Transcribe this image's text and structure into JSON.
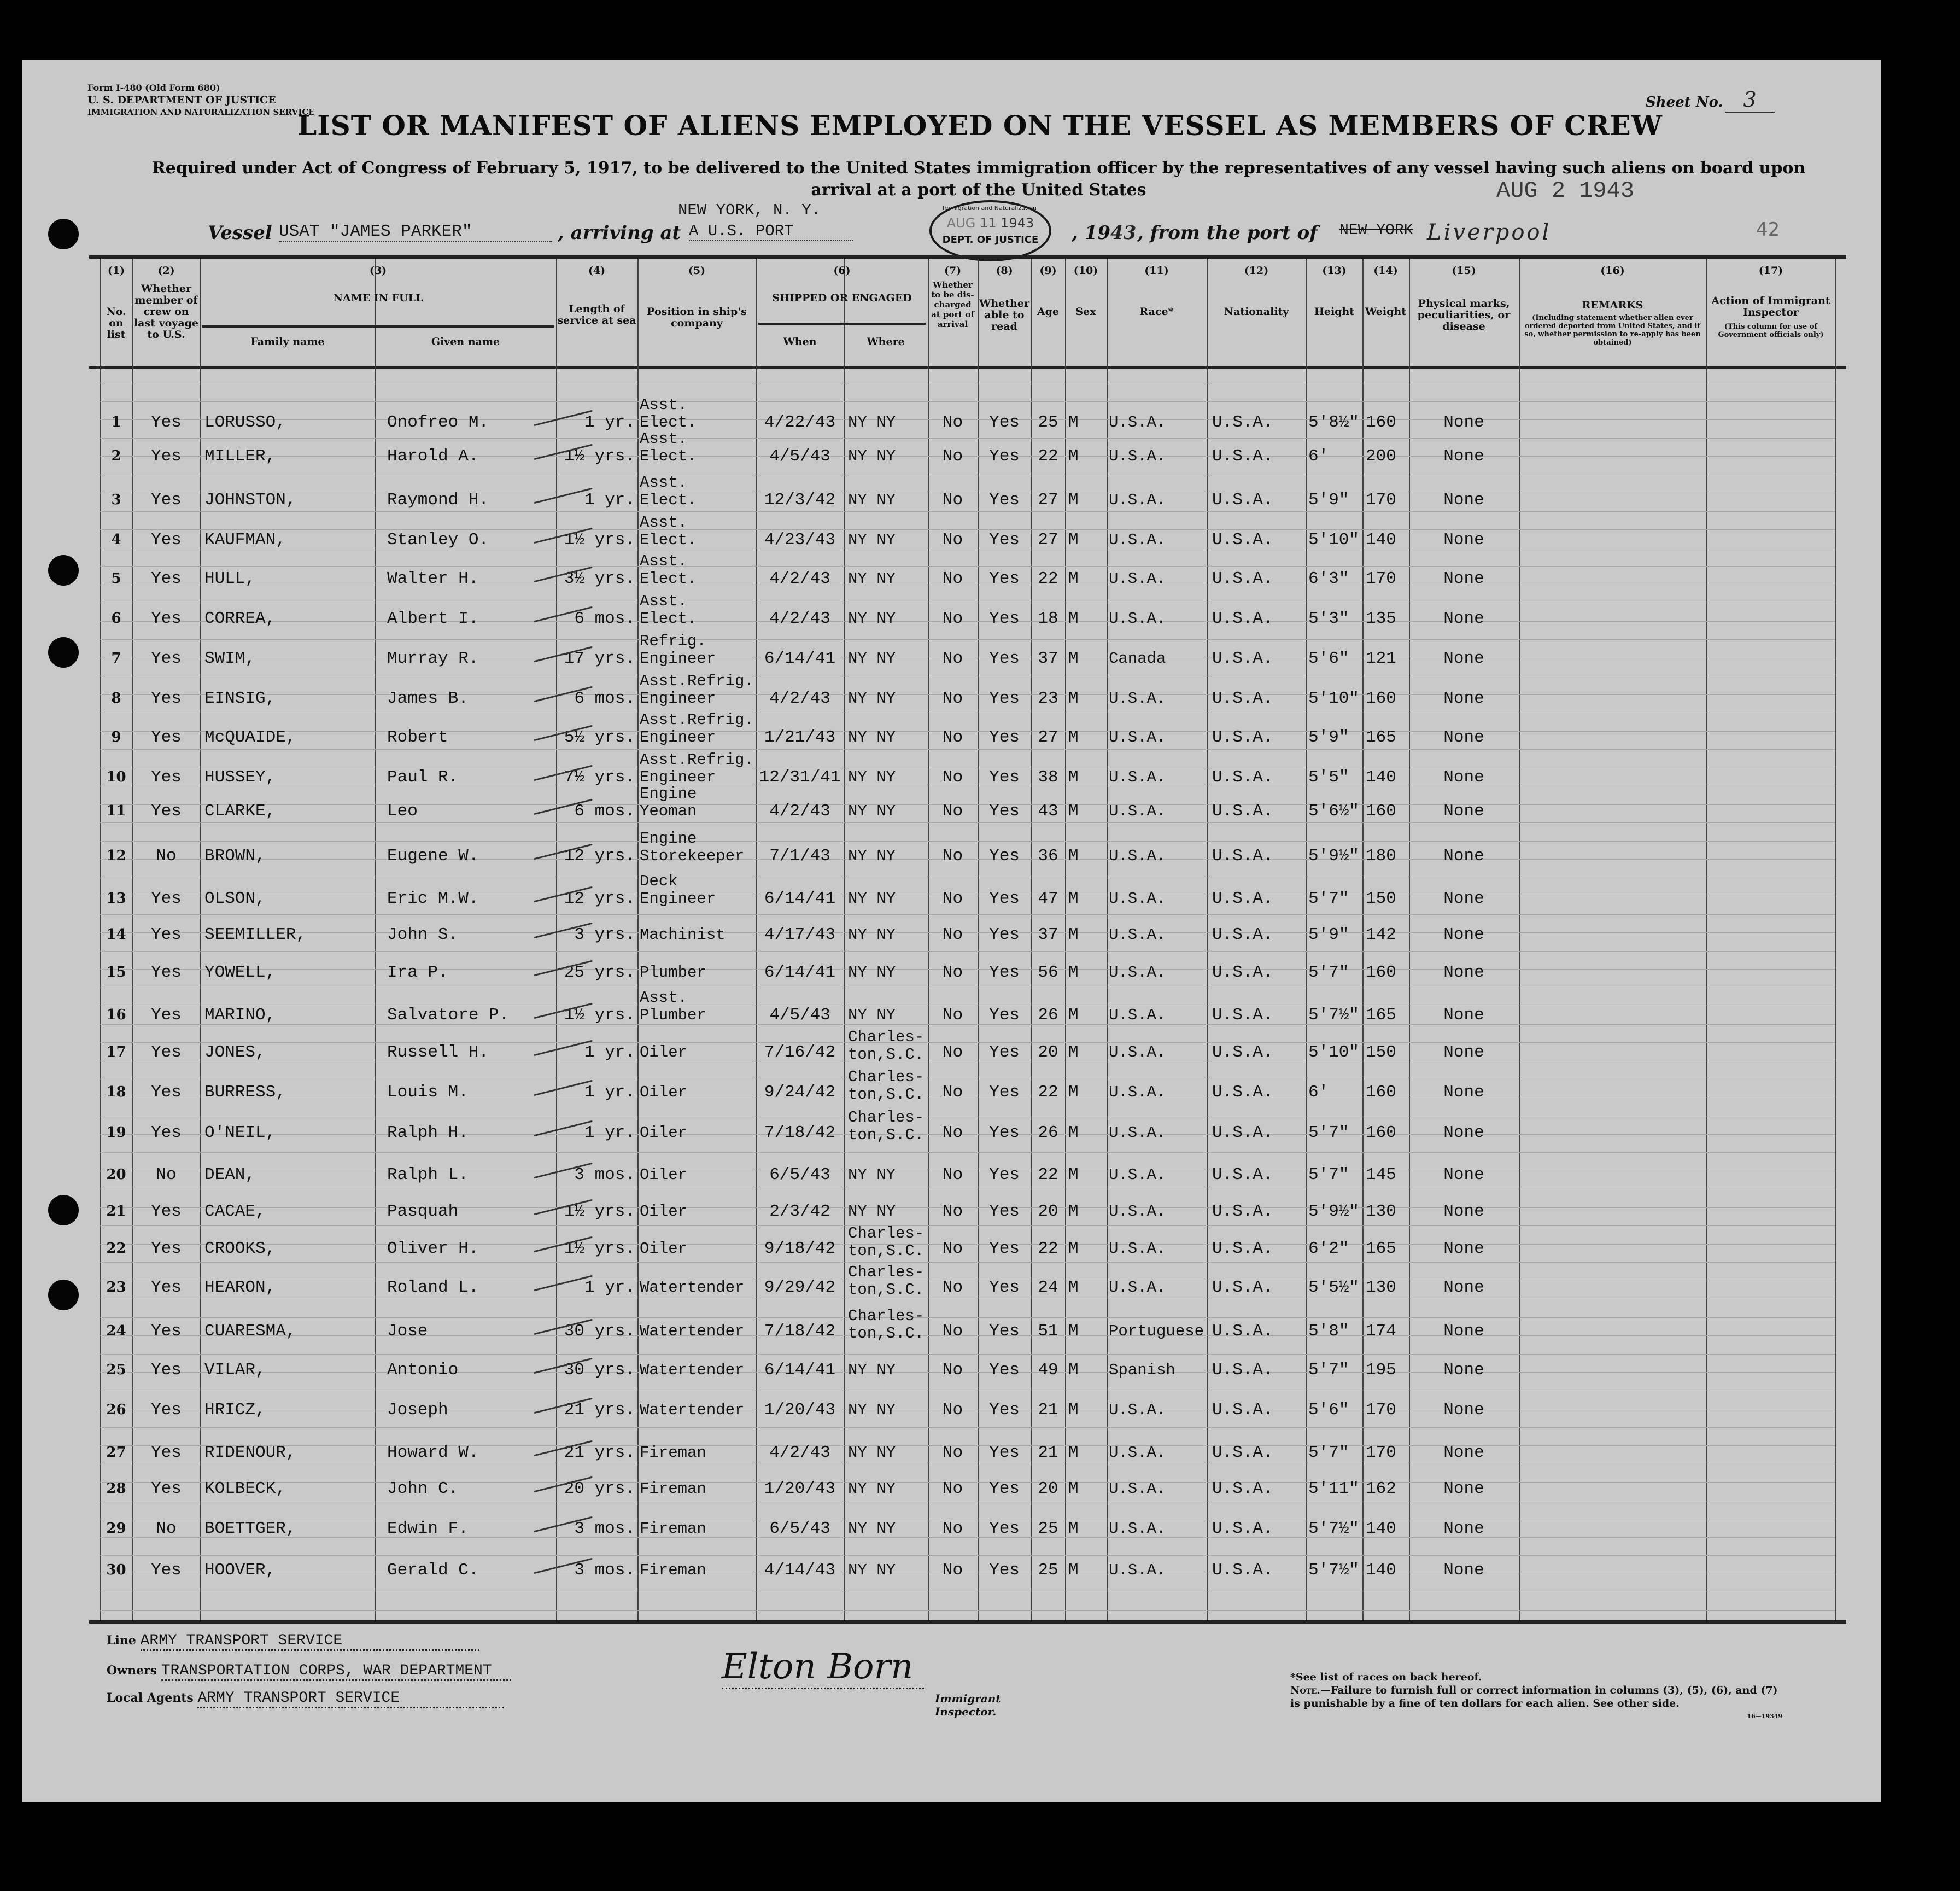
{
  "form": {
    "number": "Form I-480 (Old Form 680)",
    "department": "U. S. DEPARTMENT OF JUSTICE",
    "service": "IMMIGRATION AND NATURALIZATION SERVICE",
    "sheet_label": "Sheet No.",
    "sheet_no": "3"
  },
  "title": "LIST OR MANIFEST OF ALIENS EMPLOYED ON THE VESSEL AS MEMBERS OF CREW",
  "subtitle": "Required under Act of Congress of February 5, 1917, to be delivered to the United States immigration officer by the representatives of any vessel having such aliens on board upon arrival at a port of the United States",
  "vessel_line": {
    "vessel_label": "Vessel",
    "vessel": "USAT \"JAMES PARKER\"",
    "arriving_label": ", arriving at",
    "arriving_above": "NEW YORK, N. Y.",
    "arriving": "A U.S. PORT",
    "year": "1943",
    "year_suffix": ", 19",
    "year_value": "43",
    "from_label": ", from the port of",
    "from_struck": "NEW YORK",
    "from_port": "Liverpool",
    "date_stamp": "AUG 2 1943",
    "page_mark": "42"
  },
  "round_stamp": {
    "top": "Immigration and Naturalization Service",
    "month": "AUG",
    "day": "11",
    "year": "1943",
    "bottom": "DEPT. OF JUSTICE"
  },
  "columns": [
    {
      "num": "(1)",
      "label": "No. on list"
    },
    {
      "num": "(2)",
      "label": "Whether member of crew on last voyage to U.S."
    },
    {
      "num": "(3)",
      "label": "NAME IN FULL",
      "sub": [
        "Family name",
        "Given name"
      ]
    },
    {
      "num": "(4)",
      "label": "Length of service at sea"
    },
    {
      "num": "(5)",
      "label": "Position in ship's company"
    },
    {
      "num": "(6)",
      "label": "SHIPPED OR ENGAGED",
      "sub": [
        "When",
        "Where"
      ]
    },
    {
      "num": "(7)",
      "label": "Whether to be dis-charged at port of arrival"
    },
    {
      "num": "(8)",
      "label": "Whether able to read"
    },
    {
      "num": "(9)",
      "label": "Age"
    },
    {
      "num": "(10)",
      "label": "Sex"
    },
    {
      "num": "(11)",
      "label": "Race*"
    },
    {
      "num": "(12)",
      "label": "Nationality"
    },
    {
      "num": "(13)",
      "label": "Height"
    },
    {
      "num": "(14)",
      "label": "Weight"
    },
    {
      "num": "(15)",
      "label": "Physical marks, peculiarities, or disease"
    },
    {
      "num": "(16)",
      "label": "REMARKS",
      "note": "(Including statement whether alien ever ordered deported from United States, and if so, whether permission to re-apply has been obtained)"
    },
    {
      "num": "(17)",
      "label": "Action of Immigrant Inspector",
      "note": "(This column for use of Government officials only)"
    }
  ],
  "rows": [
    [
      "1",
      "Yes",
      "LORUSSO,",
      "Onofreo M.",
      "1 yr.",
      "Asst.\nElect.",
      "4/22/43",
      "NY NY",
      "No",
      "Yes",
      "25",
      "M",
      "U.S.A.",
      "U.S.A.",
      "5'8½\"",
      "160",
      "None"
    ],
    [
      "2",
      "Yes",
      "MILLER,",
      "Harold A.",
      "1½ yrs.",
      "Asst.\nElect.",
      "4/5/43",
      "NY NY",
      "No",
      "Yes",
      "22",
      "M",
      "U.S.A.",
      "U.S.A.",
      "6'",
      "200",
      "None"
    ],
    [
      "3",
      "Yes",
      "JOHNSTON,",
      "Raymond H.",
      "1 yr.",
      "Asst.\nElect.",
      "12/3/42",
      "NY NY",
      "No",
      "Yes",
      "27",
      "M",
      "U.S.A.",
      "U.S.A.",
      "5'9\"",
      "170",
      "None"
    ],
    [
      "4",
      "Yes",
      "KAUFMAN,",
      "Stanley O.",
      "1½ yrs.",
      "Asst.\nElect.",
      "4/23/43",
      "NY NY",
      "No",
      "Yes",
      "27",
      "M",
      "U.S.A.",
      "U.S.A.",
      "5'10\"",
      "140",
      "None"
    ],
    [
      "5",
      "Yes",
      "HULL,",
      "Walter H.",
      "3½ yrs.",
      "Asst.\nElect.",
      "4/2/43",
      "NY NY",
      "No",
      "Yes",
      "22",
      "M",
      "U.S.A.",
      "U.S.A.",
      "6'3\"",
      "170",
      "None"
    ],
    [
      "6",
      "Yes",
      "CORREA,",
      "Albert I.",
      "6 mos.",
      "Asst.\nElect.",
      "4/2/43",
      "NY NY",
      "No",
      "Yes",
      "18",
      "M",
      "U.S.A.",
      "U.S.A.",
      "5'3\"",
      "135",
      "None"
    ],
    [
      "7",
      "Yes",
      "SWIM,",
      "Murray R.",
      "17 yrs.",
      "Refrig.\nEngineer",
      "6/14/41",
      "NY NY",
      "No",
      "Yes",
      "37",
      "M",
      "Canada",
      "U.S.A.",
      "5'6\"",
      "121",
      "None"
    ],
    [
      "8",
      "Yes",
      "EINSIG,",
      "James B.",
      "6 mos.",
      "Asst.Refrig.\nEngineer",
      "4/2/43",
      "NY NY",
      "No",
      "Yes",
      "23",
      "M",
      "U.S.A.",
      "U.S.A.",
      "5'10\"",
      "160",
      "None"
    ],
    [
      "9",
      "Yes",
      "McQUAIDE,",
      "Robert",
      "5½ yrs.",
      "Asst.Refrig.\nEngineer",
      "1/21/43",
      "NY NY",
      "No",
      "Yes",
      "27",
      "M",
      "U.S.A.",
      "U.S.A.",
      "5'9\"",
      "165",
      "None"
    ],
    [
      "10",
      "Yes",
      "HUSSEY,",
      "Paul R.",
      "7½ yrs.",
      "Asst.Refrig.\nEngineer",
      "12/31/41",
      "NY NY",
      "No",
      "Yes",
      "38",
      "M",
      "U.S.A.",
      "U.S.A.",
      "5'5\"",
      "140",
      "None"
    ],
    [
      "11",
      "Yes",
      "CLARKE,",
      "Leo",
      "6 mos.",
      "Engine\nYeoman",
      "4/2/43",
      "NY NY",
      "No",
      "Yes",
      "43",
      "M",
      "U.S.A.",
      "U.S.A.",
      "5'6½\"",
      "160",
      "None"
    ],
    [
      "12",
      "No",
      "BROWN,",
      "Eugene W.",
      "12 yrs.",
      "Engine\nStorekeeper",
      "7/1/43",
      "NY NY",
      "No",
      "Yes",
      "36",
      "M",
      "U.S.A.",
      "U.S.A.",
      "5'9½\"",
      "180",
      "None"
    ],
    [
      "13",
      "Yes",
      "OLSON,",
      "Eric M.W.",
      "12 yrs.",
      "Deck\nEngineer",
      "6/14/41",
      "NY NY",
      "No",
      "Yes",
      "47",
      "M",
      "U.S.A.",
      "U.S.A.",
      "5'7\"",
      "150",
      "None"
    ],
    [
      "14",
      "Yes",
      "SEEMILLER,",
      "John S.",
      "3 yrs.",
      "Machinist",
      "4/17/43",
      "NY NY",
      "No",
      "Yes",
      "37",
      "M",
      "U.S.A.",
      "U.S.A.",
      "5'9\"",
      "142",
      "None"
    ],
    [
      "15",
      "Yes",
      "YOWELL,",
      "Ira P.",
      "25 yrs.",
      "Plumber",
      "6/14/41",
      "NY NY",
      "No",
      "Yes",
      "56",
      "M",
      "U.S.A.",
      "U.S.A.",
      "5'7\"",
      "160",
      "None"
    ],
    [
      "16",
      "Yes",
      "MARINO,",
      "Salvatore P.",
      "1½ yrs.",
      "Asst.\nPlumber",
      "4/5/43",
      "NY NY",
      "No",
      "Yes",
      "26",
      "M",
      "U.S.A.",
      "U.S.A.",
      "5'7½\"",
      "165",
      "None"
    ],
    [
      "17",
      "Yes",
      "JONES,",
      "Russell H.",
      "1 yr.",
      "Oiler",
      "7/16/42",
      "Charles-\nton,S.C.",
      "No",
      "Yes",
      "20",
      "M",
      "U.S.A.",
      "U.S.A.",
      "5'10\"",
      "150",
      "None"
    ],
    [
      "18",
      "Yes",
      "BURRESS,",
      "Louis M.",
      "1 yr.",
      "Oiler",
      "9/24/42",
      "Charles-\nton,S.C.",
      "No",
      "Yes",
      "22",
      "M",
      "U.S.A.",
      "U.S.A.",
      "6'",
      "160",
      "None"
    ],
    [
      "19",
      "Yes",
      "O'NEIL,",
      "Ralph H.",
      "1 yr.",
      "Oiler",
      "7/18/42",
      "Charles-\nton,S.C.",
      "No",
      "Yes",
      "26",
      "M",
      "U.S.A.",
      "U.S.A.",
      "5'7\"",
      "160",
      "None"
    ],
    [
      "20",
      "No",
      "DEAN,",
      "Ralph L.",
      "3 mos.",
      "Oiler",
      "6/5/43",
      "NY NY",
      "No",
      "Yes",
      "22",
      "M",
      "U.S.A.",
      "U.S.A.",
      "5'7\"",
      "145",
      "None"
    ],
    [
      "21",
      "Yes",
      "CACAE,",
      "Pasquah",
      "1½ yrs.",
      "Oiler",
      "2/3/42",
      "NY NY",
      "No",
      "Yes",
      "20",
      "M",
      "U.S.A.",
      "U.S.A.",
      "5'9½\"",
      "130",
      "None"
    ],
    [
      "22",
      "Yes",
      "CROOKS,",
      "Oliver H.",
      "1½ yrs.",
      "Oiler",
      "9/18/42",
      "Charles-\nton,S.C.",
      "No",
      "Yes",
      "22",
      "M",
      "U.S.A.",
      "U.S.A.",
      "6'2\"",
      "165",
      "None"
    ],
    [
      "23",
      "Yes",
      "HEARON,",
      "Roland L.",
      "1 yr.",
      "Watertender",
      "9/29/42",
      "Charles-\nton,S.C.",
      "No",
      "Yes",
      "24",
      "M",
      "U.S.A.",
      "U.S.A.",
      "5'5½\"",
      "130",
      "None"
    ],
    [
      "24",
      "Yes",
      "CUARESMA,",
      "Jose",
      "30 yrs.",
      "Watertender",
      "7/18/42",
      "Charles-\nton,S.C.",
      "No",
      "Yes",
      "51",
      "M",
      "Portuguese",
      "U.S.A.",
      "5'8\"",
      "174",
      "None"
    ],
    [
      "25",
      "Yes",
      "VILAR,",
      "Antonio",
      "30 yrs.",
      "Watertender",
      "6/14/41",
      "NY NY",
      "No",
      "Yes",
      "49",
      "M",
      "Spanish",
      "U.S.A.",
      "5'7\"",
      "195",
      "None"
    ],
    [
      "26",
      "Yes",
      "HRICZ,",
      "Joseph",
      "21 yrs.",
      "Watertender",
      "1/20/43",
      "NY NY",
      "No",
      "Yes",
      "21",
      "M",
      "U.S.A.",
      "U.S.A.",
      "5'6\"",
      "170",
      "None"
    ],
    [
      "27",
      "Yes",
      "RIDENOUR,",
      "Howard W.",
      "21 yrs.",
      "Fireman",
      "4/2/43",
      "NY NY",
      "No",
      "Yes",
      "21",
      "M",
      "U.S.A.",
      "U.S.A.",
      "5'7\"",
      "170",
      "None"
    ],
    [
      "28",
      "Yes",
      "KOLBECK,",
      "John C.",
      "20 yrs.",
      "Fireman",
      "1/20/43",
      "NY NY",
      "No",
      "Yes",
      "20",
      "M",
      "U.S.A.",
      "U.S.A.",
      "5'11\"",
      "162",
      "None"
    ],
    [
      "29",
      "No",
      "BOETTGER,",
      "Edwin F.",
      "3 mos.",
      "Fireman",
      "6/5/43",
      "NY NY",
      "No",
      "Yes",
      "25",
      "M",
      "U.S.A.",
      "U.S.A.",
      "5'7½\"",
      "140",
      "None"
    ],
    [
      "30",
      "Yes",
      "HOOVER,",
      "Gerald C.",
      "3 mos.",
      "Fireman",
      "4/14/43",
      "NY NY",
      "No",
      "Yes",
      "25",
      "M",
      "U.S.A.",
      "U.S.A.",
      "5'7½\"",
      "140",
      "None"
    ]
  ],
  "footer": {
    "line_label": "Line",
    "line": "ARMY TRANSPORT SERVICE",
    "owners_label": "Owners",
    "owners": "TRANSPORTATION CORPS, WAR DEPARTMENT",
    "agents_label": "Local Agents",
    "agents": "ARMY TRANSPORT SERVICE",
    "signature": "Elton Born",
    "inspector_label": "Immigrant Inspector.",
    "races_note": "*See list of races on back hereof.",
    "note_label": "Note.",
    "note": "—Failure to furnish full or correct information in columns (3), (5), (6), and (7) is punishable by a fine of ten dollars for each alien.  See other side.",
    "print_code": "16—19349"
  }
}
